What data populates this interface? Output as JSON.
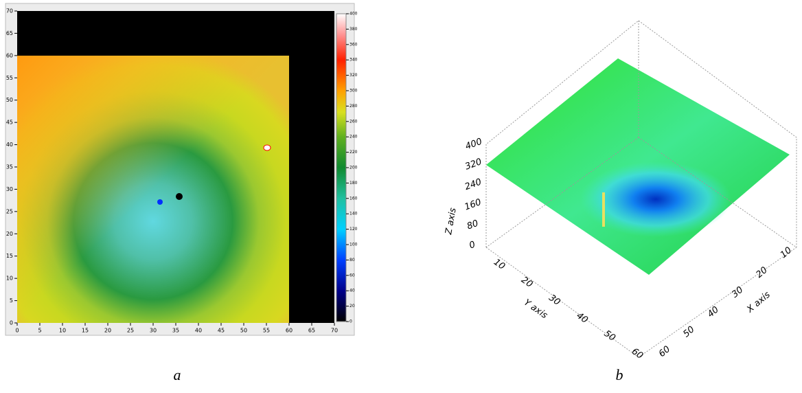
{
  "panel_a": {
    "xticks": [
      0,
      5,
      10,
      15,
      20,
      25,
      30,
      35,
      40,
      45,
      50,
      55,
      60,
      65,
      70
    ],
    "yticks": [
      0,
      5,
      10,
      15,
      20,
      25,
      30,
      35,
      40,
      45,
      50,
      55,
      60,
      65,
      70
    ],
    "colorbar_ticks": [
      0,
      20,
      40,
      60,
      80,
      100,
      120,
      140,
      160,
      180,
      200,
      220,
      240,
      260,
      280,
      300,
      320,
      340,
      360,
      380,
      400
    ]
  },
  "panel_b": {
    "x_axis_label": "X axis",
    "y_axis_label": "Y axis",
    "z_axis_label": "Z axis",
    "x_ticks": [
      10,
      20,
      30,
      40,
      50,
      60
    ],
    "y_ticks": [
      10,
      20,
      30,
      40,
      50,
      60
    ],
    "z_ticks": [
      0,
      80,
      160,
      240,
      320,
      400
    ]
  },
  "captions": [
    "a",
    "b"
  ]
}
